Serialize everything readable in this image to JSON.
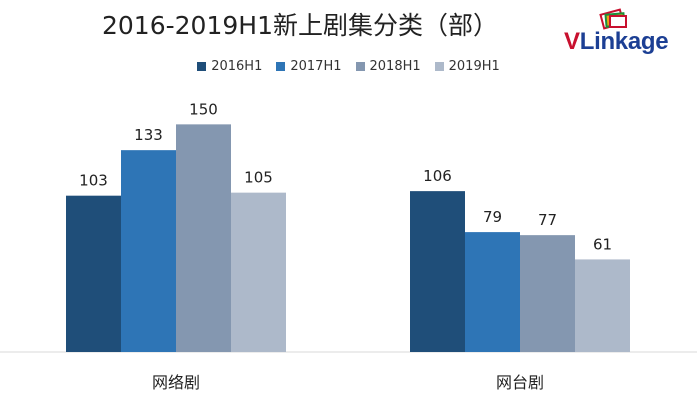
{
  "chart_data": {
    "type": "bar",
    "title": "2016-2019H1新上剧集分类（部）",
    "categories": [
      "网络剧",
      "网台剧"
    ],
    "series": [
      {
        "name": "2016H1",
        "values": [
          103,
          106
        ],
        "color": "#1f4e79"
      },
      {
        "name": "2017H1",
        "values": [
          133,
          79
        ],
        "color": "#2e75b6"
      },
      {
        "name": "2018H1",
        "values": [
          150,
          77
        ],
        "color": "#8497b0"
      },
      {
        "name": "2019H1",
        "values": [
          105,
          61
        ],
        "color": "#adb9ca"
      }
    ],
    "ylim": [
      0,
      170
    ],
    "grid": false,
    "legend_position": "top"
  },
  "logo": {
    "text_v": "V",
    "text_rest": "Linkage"
  }
}
